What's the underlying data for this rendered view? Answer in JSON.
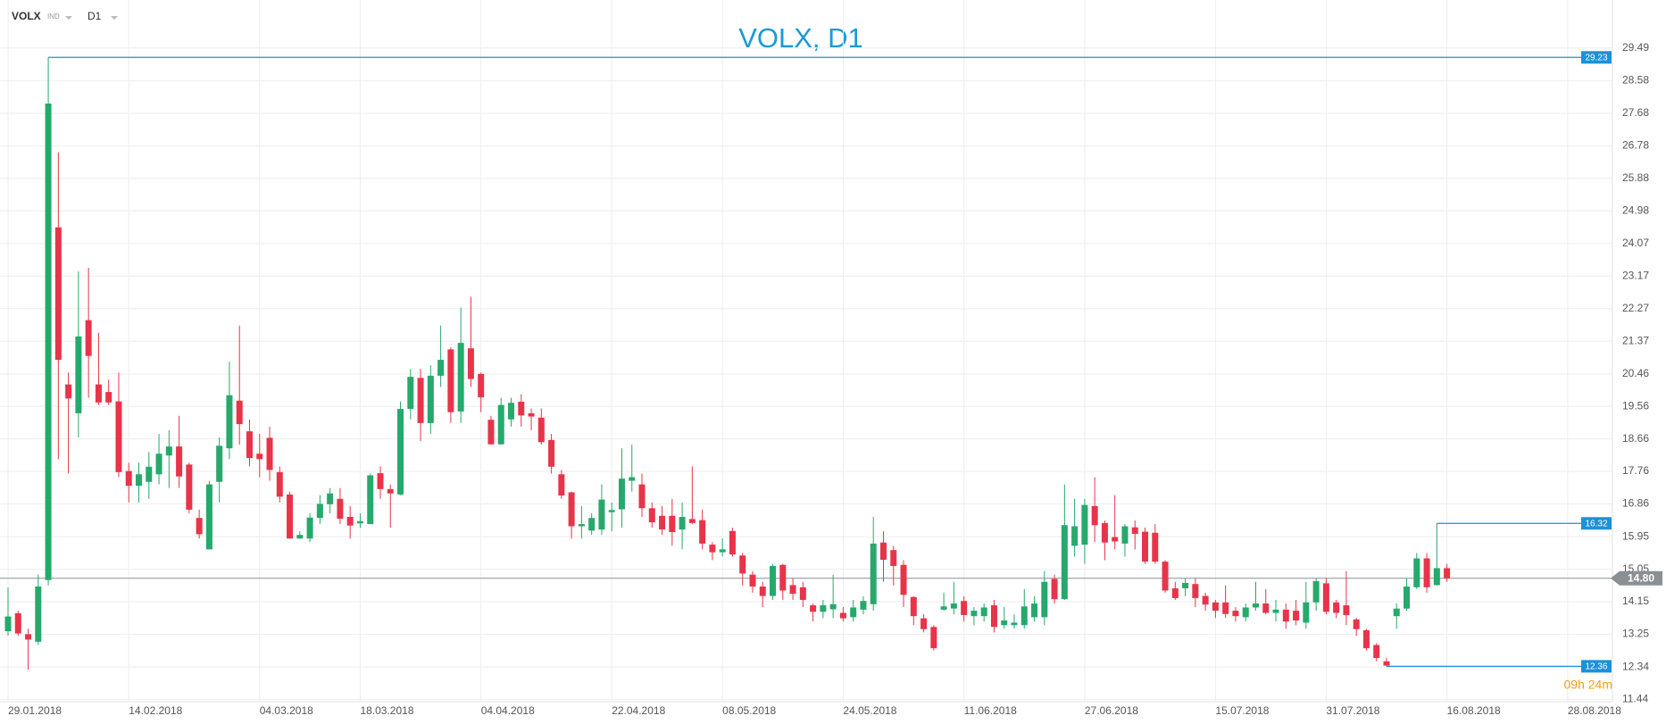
{
  "header": {
    "symbol": "VOLX",
    "market": "IND",
    "timeframe": "D1"
  },
  "chart_data": {
    "type": "candlestick",
    "title": "VOLX, D1",
    "up_color": "#26a96c",
    "down_color": "#e8344a",
    "grid": true,
    "x": [
      "29.01.2018",
      "30.01.2018",
      "31.01.2018",
      "01.02.2018",
      "02.02.2018",
      "05.02.2018",
      "06.02.2018",
      "07.02.2018",
      "08.02.2018",
      "09.02.2018",
      "12.02.2018",
      "13.02.2018",
      "14.02.2018",
      "15.02.2018",
      "16.02.2018",
      "19.02.2018",
      "20.02.2018",
      "21.02.2018",
      "22.02.2018",
      "23.02.2018",
      "26.02.2018",
      "27.02.2018",
      "28.02.2018",
      "01.03.2018",
      "02.03.2018",
      "05.03.2018",
      "06.03.2018",
      "07.03.2018",
      "08.03.2018",
      "09.03.2018",
      "12.03.2018",
      "13.03.2018",
      "14.03.2018",
      "15.03.2018",
      "16.03.2018",
      "19.03.2018",
      "20.03.2018",
      "21.03.2018",
      "22.03.2018",
      "23.03.2018",
      "26.03.2018",
      "27.03.2018",
      "28.03.2018",
      "29.03.2018",
      "30.03.2018",
      "02.04.2018",
      "03.04.2018",
      "04.04.2018",
      "05.04.2018",
      "06.04.2018",
      "09.04.2018",
      "10.04.2018",
      "11.04.2018",
      "12.04.2018",
      "13.04.2018",
      "16.04.2018",
      "17.04.2018",
      "18.04.2018",
      "19.04.2018",
      "20.04.2018",
      "23.04.2018",
      "24.04.2018",
      "25.04.2018",
      "26.04.2018",
      "27.04.2018",
      "30.04.2018",
      "01.05.2018",
      "02.05.2018",
      "03.05.2018",
      "04.05.2018",
      "07.05.2018",
      "08.05.2018",
      "09.05.2018",
      "10.05.2018",
      "11.05.2018",
      "14.05.2018",
      "15.05.2018",
      "16.05.2018",
      "17.05.2018",
      "18.05.2018",
      "21.05.2018",
      "22.05.2018",
      "23.05.2018",
      "24.05.2018",
      "25.05.2018",
      "28.05.2018",
      "29.05.2018",
      "30.05.2018",
      "31.05.2018",
      "01.06.2018",
      "04.06.2018",
      "05.06.2018",
      "06.06.2018",
      "07.06.2018",
      "08.06.2018",
      "11.06.2018",
      "12.06.2018",
      "13.06.2018",
      "14.06.2018",
      "15.06.2018",
      "18.06.2018",
      "19.06.2018",
      "20.06.2018",
      "21.06.2018",
      "22.06.2018",
      "25.06.2018",
      "26.06.2018",
      "27.06.2018",
      "28.06.2018",
      "29.06.2018",
      "02.07.2018",
      "03.07.2018",
      "04.07.2018",
      "05.07.2018",
      "06.07.2018",
      "09.07.2018",
      "10.07.2018",
      "11.07.2018",
      "12.07.2018",
      "13.07.2018",
      "16.07.2018",
      "17.07.2018",
      "18.07.2018",
      "19.07.2018",
      "20.07.2018",
      "23.07.2018",
      "24.07.2018",
      "25.07.2018",
      "26.07.2018",
      "27.07.2018",
      "30.07.2018",
      "31.07.2018",
      "01.08.2018",
      "02.08.2018",
      "03.08.2018",
      "06.08.2018",
      "07.08.2018",
      "08.08.2018",
      "09.08.2018",
      "10.08.2018",
      "13.08.2018",
      "14.08.2018",
      "15.08.2018",
      "16.08.2018"
    ],
    "open": [
      13.33,
      13.83,
      13.25,
      13.04,
      14.75,
      24.52,
      20.17,
      19.37,
      21.95,
      20.17,
      19.96,
      19.7,
      17.77,
      17.36,
      17.47,
      17.68,
      18.2,
      18.45,
      17.95,
      16.47,
      15.6,
      17.47,
      18.4,
      19.72,
      18.87,
      18.25,
      18.69,
      17.74,
      17.12,
      15.9,
      15.9,
      16.47,
      16.85,
      17.0,
      16.5,
      16.32,
      16.3,
      17.71,
      17.27,
      17.12,
      19.49,
      20.35,
      19.1,
      20.41,
      21.14,
      19.42,
      21.17,
      20.46,
      19.19,
      18.51,
      19.2,
      19.69,
      19.37,
      19.25,
      18.63,
      17.68,
      17.18,
      16.24,
      16.12,
      16.15,
      16.63,
      16.71,
      17.5,
      17.4,
      16.74,
      16.53,
      16.53,
      16.15,
      16.44,
      16.41,
      15.73,
      15.52,
      16.11,
      15.43,
      14.9,
      14.57,
      14.31,
      15.17,
      14.61,
      14.55,
      14.05,
      13.87,
      13.94,
      13.84,
      13.72,
      13.93,
      14.08,
      15.79,
      15.58,
      15.17,
      14.28,
      13.69,
      13.45,
      13.93,
      13.96,
      14.17,
      13.75,
      13.75,
      14.05,
      13.5,
      13.5,
      13.5,
      13.72,
      13.72,
      14.78,
      14.22,
      15.7,
      15.73,
      16.8,
      16.33,
      15.94,
      15.76,
      16.21,
      16.09,
      16.06,
      15.26,
      14.52,
      14.52,
      14.64,
      14.31,
      14.13,
      14.13,
      13.9,
      13.72,
      13.99,
      14.1,
      13.84,
      13.93,
      13.9,
      13.57,
      14.13,
      14.66,
      14.13,
      14.05,
      13.66,
      13.36,
      12.95,
      12.5,
      13.75,
      13.96,
      14.55,
      15.35,
      14.61,
      15.08
    ],
    "high": [
      14.55,
      13.9,
      13.4,
      14.9,
      29.23,
      26.6,
      20.5,
      23.3,
      23.4,
      21.6,
      20.3,
      20.5,
      18.0,
      18.0,
      18.3,
      18.8,
      18.9,
      19.3,
      18.0,
      16.7,
      17.5,
      18.7,
      20.8,
      21.8,
      19.2,
      18.8,
      19.0,
      17.9,
      17.2,
      16.1,
      16.6,
      17.1,
      17.3,
      17.3,
      16.8,
      16.6,
      17.7,
      17.9,
      17.4,
      19.7,
      20.6,
      20.6,
      20.7,
      21.8,
      21.2,
      22.3,
      22.6,
      20.5,
      19.3,
      19.8,
      19.8,
      19.9,
      19.5,
      19.5,
      18.8,
      17.8,
      17.2,
      16.8,
      16.6,
      17.4,
      16.9,
      18.4,
      18.5,
      17.7,
      16.9,
      16.8,
      17.0,
      16.9,
      17.9,
      16.7,
      15.8,
      15.9,
      16.2,
      15.5,
      15.0,
      14.7,
      15.2,
      15.2,
      14.8,
      14.7,
      14.1,
      14.2,
      14.9,
      14.0,
      14.2,
      14.3,
      16.5,
      16.1,
      15.7,
      15.3,
      14.3,
      13.8,
      13.5,
      14.4,
      14.7,
      14.3,
      14.0,
      14.1,
      14.2,
      14.0,
      13.8,
      14.5,
      14.3,
      15.0,
      14.9,
      17.4,
      17.0,
      17.0,
      17.6,
      16.4,
      17.1,
      16.3,
      16.4,
      16.2,
      16.3,
      15.3,
      14.7,
      14.8,
      14.8,
      14.4,
      14.2,
      14.6,
      14.0,
      14.1,
      14.7,
      14.5,
      14.2,
      14.1,
      14.2,
      14.7,
      14.8,
      14.8,
      14.2,
      15.0,
      13.7,
      13.4,
      13.0,
      12.6,
      14.1,
      14.8,
      15.5,
      15.5,
      16.32,
      15.2
    ],
    "low": [
      13.21,
      13.2,
      12.27,
      12.95,
      14.6,
      18.1,
      17.7,
      18.7,
      19.8,
      19.6,
      19.6,
      17.6,
      16.9,
      16.9,
      17.0,
      17.4,
      17.3,
      17.3,
      16.6,
      15.9,
      15.6,
      16.9,
      18.1,
      18.5,
      17.9,
      17.6,
      17.5,
      16.9,
      15.9,
      15.9,
      15.8,
      16.3,
      16.6,
      16.3,
      15.9,
      16.2,
      16.3,
      17.0,
      16.2,
      17.1,
      19.2,
      18.6,
      18.8,
      20.1,
      19.1,
      19.1,
      20.1,
      19.4,
      18.5,
      18.5,
      19.0,
      19.0,
      18.9,
      18.5,
      17.7,
      17.0,
      15.9,
      15.9,
      16.0,
      16.0,
      16.1,
      16.2,
      17.2,
      16.5,
      16.2,
      16.0,
      15.7,
      15.6,
      16.3,
      15.6,
      15.3,
      15.4,
      15.4,
      14.6,
      14.4,
      14.0,
      14.2,
      14.2,
      14.2,
      14.0,
      13.6,
      13.7,
      13.7,
      13.6,
      13.6,
      13.8,
      13.9,
      14.7,
      14.6,
      14.0,
      13.5,
      13.3,
      12.8,
      13.9,
      13.8,
      13.6,
      13.5,
      13.6,
      13.3,
      13.4,
      13.4,
      13.4,
      13.6,
      13.5,
      14.1,
      14.2,
      15.4,
      15.2,
      15.8,
      15.3,
      15.6,
      15.4,
      15.6,
      15.2,
      15.2,
      14.4,
      14.2,
      14.3,
      14.0,
      13.9,
      13.7,
      13.7,
      13.6,
      13.6,
      13.9,
      13.8,
      13.6,
      13.4,
      13.5,
      13.4,
      13.9,
      13.8,
      13.7,
      13.5,
      13.2,
      12.8,
      12.5,
      12.36,
      13.4,
      13.9,
      14.5,
      14.4,
      14.6,
      14.7
    ],
    "close": [
      13.74,
      13.27,
      13.1,
      14.57,
      27.95,
      20.85,
      19.78,
      21.5,
      20.96,
      19.67,
      19.67,
      17.74,
      17.36,
      17.68,
      17.89,
      18.25,
      18.45,
      17.62,
      16.7,
      16.02,
      17.4,
      18.47,
      19.87,
      19.07,
      18.13,
      18.1,
      17.8,
      17.06,
      15.9,
      16.0,
      16.48,
      16.86,
      17.15,
      16.45,
      16.26,
      16.38,
      17.65,
      17.27,
      17.15,
      19.49,
      20.38,
      19.1,
      20.41,
      20.85,
      19.4,
      21.32,
      20.32,
      19.81,
      18.51,
      19.6,
      19.66,
      19.31,
      19.28,
      18.57,
      17.89,
      17.09,
      16.24,
      16.3,
      16.47,
      16.98,
      16.69,
      17.56,
      17.6,
      16.74,
      16.35,
      16.15,
      16.08,
      16.5,
      16.33,
      15.76,
      15.52,
      15.6,
      15.46,
      14.93,
      14.57,
      14.31,
      15.14,
      14.46,
      14.37,
      14.2,
      13.87,
      14.05,
      14.08,
      13.69,
      13.99,
      14.17,
      15.76,
      15.31,
      15.14,
      14.34,
      13.75,
      13.39,
      12.86,
      14.02,
      14.1,
      13.78,
      13.9,
      13.99,
      13.45,
      13.63,
      13.57,
      14.02,
      14.1,
      14.7,
      14.22,
      16.27,
      16.24,
      16.83,
      16.27,
      15.79,
      15.82,
      16.24,
      16.03,
      15.26,
      15.26,
      14.46,
      14.25,
      14.67,
      14.25,
      14.07,
      13.9,
      13.81,
      13.75,
      13.99,
      14.1,
      13.84,
      13.93,
      13.6,
      13.63,
      14.13,
      14.72,
      13.87,
      13.84,
      13.78,
      13.39,
      12.86,
      12.59,
      12.38,
      13.96,
      14.57,
      15.35,
      14.55,
      15.08,
      14.8
    ],
    "ylim": [
      11.38,
      30.82
    ],
    "yticks": [
      29.49,
      28.58,
      27.68,
      26.78,
      25.88,
      24.98,
      24.07,
      23.17,
      22.27,
      21.37,
      20.46,
      19.56,
      18.66,
      17.76,
      16.86,
      15.95,
      15.05,
      14.15,
      13.25,
      12.34,
      11.44
    ],
    "xticks": [
      "29.01.2018",
      "14.02.2018",
      "04.03.2018",
      "18.03.2018",
      "04.04.2018",
      "22.04.2018",
      "08.05.2018",
      "24.05.2018",
      "11.06.2018",
      "27.06.2018",
      "15.07.2018",
      "31.07.2018",
      "16.08.2018",
      "28.08.2018"
    ],
    "price_lines": [
      29.23,
      16.32,
      12.36
    ],
    "price_line_color": "#1e90d8",
    "current_price": {
      "value": 14.8,
      "label": "14.80"
    },
    "current_price_color": "#8a8f94",
    "countdown": "09h 24m"
  }
}
